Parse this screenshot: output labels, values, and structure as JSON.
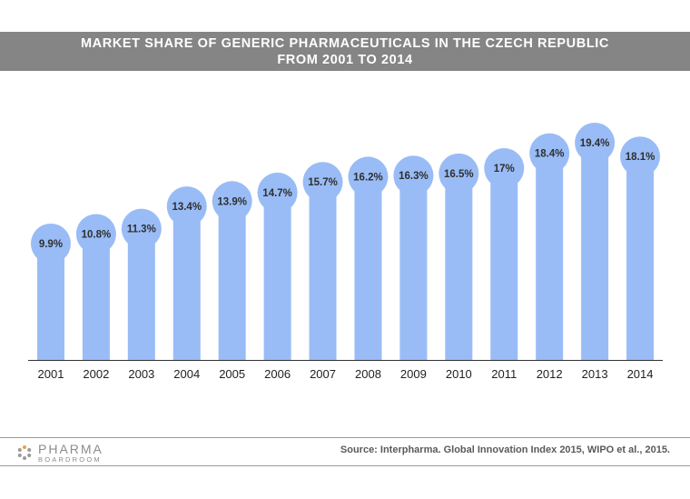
{
  "title_lines": [
    "MARKET SHARE OF GENERIC PHARMACEUTICALS IN THE CZECH REPUBLIC",
    "FROM 2001 TO 2014"
  ],
  "colors": {
    "title_band": "#858585",
    "bar": "#99bcf6",
    "label_text": "#2f2f2f",
    "axis": "#333333"
  },
  "chart_data": {
    "type": "bar",
    "title": "MARKET SHARE OF GENERIC PHARMACEUTICALS IN THE CZECH REPUBLIC FROM 2001 TO 2014",
    "categories": [
      "2001",
      "2002",
      "2003",
      "2004",
      "2005",
      "2006",
      "2007",
      "2008",
      "2009",
      "2010",
      "2011",
      "2012",
      "2013",
      "2014"
    ],
    "values": [
      9.9,
      10.8,
      11.3,
      13.4,
      13.9,
      14.7,
      15.7,
      16.2,
      16.3,
      16.5,
      17,
      18.4,
      19.4,
      18.1
    ],
    "data_labels": [
      "9.9%",
      "10.8%",
      "11.3%",
      "13.4%",
      "13.9%",
      "14.7%",
      "15.7%",
      "16.2%",
      "16.3%",
      "16.5%",
      "17%",
      "18.4%",
      "19.4%",
      "18.1%"
    ],
    "xlabel": "",
    "ylabel": "",
    "grid": false,
    "legend": "none"
  },
  "footer": {
    "logo_line1": "PHARMA",
    "logo_line2": "BOARDROOM",
    "source": "Source: Interpharma. Global Innovation Index 2015, WIPO et al., 2015."
  }
}
